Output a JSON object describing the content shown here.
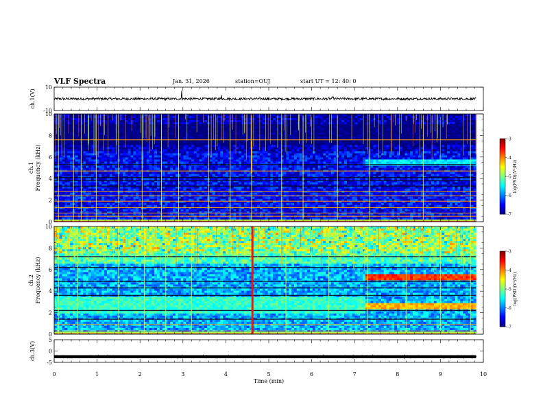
{
  "header": {
    "title": "VLF Spectra",
    "date": "Jan. 31, 2026",
    "station": "station=OUJ",
    "start_ut": "start  UT =   12: 40: 0"
  },
  "chart_data": [
    {
      "type": "line",
      "name": "ch1-waveform",
      "ylabel": "ch.1(V)",
      "ylim": [
        -10,
        10
      ],
      "yticks": [
        "10",
        "-10"
      ],
      "baseline": 0,
      "noise_amplitude": 1,
      "spikes": [
        {
          "x": 2.97,
          "y": 7
        },
        {
          "x": 3.9,
          "y": 3
        },
        {
          "x": 6.5,
          "y": 2
        }
      ]
    },
    {
      "type": "heatmap",
      "name": "ch1-spectrogram",
      "ylabel_lines": [
        "ch.1",
        "Frequency (kHz)"
      ],
      "xlim": [
        0,
        10
      ],
      "ylim": [
        0,
        10
      ],
      "yticks": [
        "0",
        "2",
        "4",
        "6",
        "8",
        "10"
      ],
      "data_end_min": 9.83,
      "colorbar": {
        "label": "log(PSD)(V²/Hz)",
        "range": [
          -7,
          -3
        ],
        "ticks": [
          "-3",
          "-4",
          "-5",
          "-6",
          "-7"
        ]
      },
      "background_level": -6.5,
      "upper_level": -6.8,
      "lines_khz": [
        0.1,
        0.5,
        0.8,
        1.3,
        1.9,
        2.4,
        2.8,
        3.3,
        3.8,
        4.1,
        4.7,
        5.3,
        7.6
      ],
      "bands": [
        {
          "f_low": 5.1,
          "f_high": 5.8,
          "t_start": 7.25,
          "t_end": 9.83,
          "level": -5.6
        }
      ],
      "spikes_min": [
        0.1,
        0.45,
        0.63,
        0.98,
        1.5,
        2.05,
        2.5,
        2.9,
        3.6,
        4.1,
        4.6,
        5.3,
        5.8,
        6.6,
        7.35,
        8.6,
        9.7
      ]
    },
    {
      "type": "heatmap",
      "name": "ch2-spectrogram",
      "ylabel_lines": [
        "ch.2",
        "Frequency (kHz)"
      ],
      "xlim": [
        0,
        10
      ],
      "ylim": [
        0,
        10
      ],
      "yticks": [
        "0",
        "2",
        "4",
        "6",
        "8",
        "10"
      ],
      "data_end_min": 9.83,
      "colorbar": {
        "label": "log(PSD)(V²/Hz)",
        "range": [
          -7,
          -3
        ],
        "ticks": [
          "-3",
          "-4",
          "-5",
          "-6",
          "-7"
        ]
      },
      "background_level": -5.8,
      "upper_level": -5.2,
      "lines_khz": [
        0.3,
        0.9,
        1.4,
        2.2,
        3.6,
        4.3,
        4.9,
        6.2,
        7.2
      ],
      "bands": [
        {
          "f_low": 2.0,
          "f_high": 3.5,
          "t_start": 0,
          "t_end": 7.25,
          "level": -5.3
        },
        {
          "f_low": 5.0,
          "f_high": 5.6,
          "t_start": 7.25,
          "t_end": 9.83,
          "level": -3.7
        },
        {
          "f_low": 2.3,
          "f_high": 2.9,
          "t_start": 7.25,
          "t_end": 9.83,
          "level": -4.2
        }
      ],
      "spikes_min": [
        0.1,
        0.55,
        1.5,
        2.1,
        2.6,
        3.2,
        4.62,
        5.4,
        6.4,
        7.3,
        8.2,
        9.0,
        9.7
      ]
    },
    {
      "type": "line",
      "name": "ch3-waveform",
      "ylabel": "ch.3(V)",
      "xlabel": "Time (min)",
      "xlim": [
        0,
        10
      ],
      "xticks": [
        "0",
        "1",
        "2",
        "3",
        "4",
        "5",
        "6",
        "7",
        "8",
        "9",
        "10"
      ],
      "ylim": [
        -5,
        5
      ],
      "yticks": [
        "5",
        "0",
        "-5"
      ],
      "baseline": -2.5,
      "noise_amplitude": 0.35
    }
  ]
}
